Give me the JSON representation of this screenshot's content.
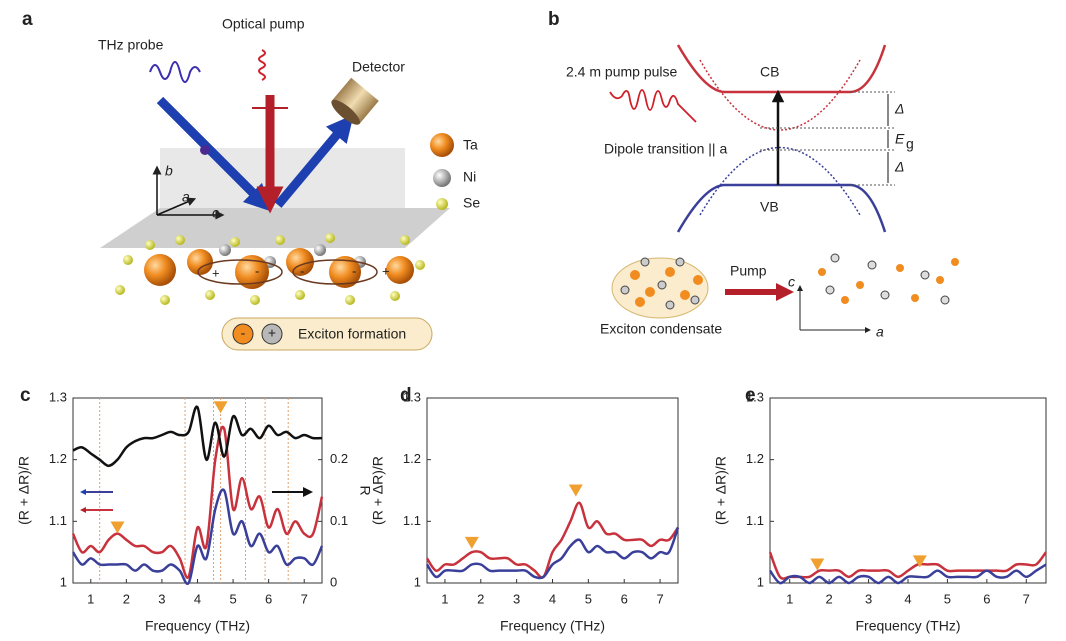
{
  "panel_a": {
    "label": "a",
    "thz_probe": "THz probe",
    "optical_pump": "Optical pump",
    "detector": "Detector",
    "legend": [
      "Ta",
      "Ni",
      "Se"
    ],
    "axes": [
      "b",
      "a",
      "c"
    ],
    "charges": [
      "-",
      "+"
    ],
    "exciton_formation": "Exciton formation"
  },
  "panel_b": {
    "label": "b",
    "pump_pulse": "2.4  m pump pulse",
    "cb": "CB",
    "vb": "VB",
    "delta": "Δ",
    "eg": "E",
    "eg_sub": "g",
    "dipole": "Dipole transition || a",
    "pump": "Pump",
    "condensate": "Exciton condensate",
    "axes": [
      "c",
      "a"
    ]
  },
  "chart_data": [
    {
      "type": "line",
      "label": "c",
      "x": [
        0.5,
        0.75,
        1,
        1.25,
        1.5,
        1.75,
        2,
        2.25,
        2.5,
        2.75,
        3,
        3.25,
        3.5,
        3.75,
        4,
        4.25,
        4.5,
        4.75,
        5,
        5.25,
        5.5,
        5.75,
        6,
        6.25,
        6.5,
        6.75,
        7,
        7.25,
        7.5
      ],
      "xlim": [
        0.5,
        7.5
      ],
      "xticks": [
        1,
        2,
        3,
        4,
        5,
        6,
        7
      ],
      "ylim": [
        1,
        1.3
      ],
      "yticks": [
        1,
        1.1,
        1.2,
        1.3
      ],
      "y2lim": [
        0,
        0.3
      ],
      "y2ticks": [
        0,
        0.1,
        0.2
      ],
      "xlabel": "Frequency (THz)",
      "ylabel": "(R + ΔR)/R",
      "y2label": "R",
      "series": [
        {
          "color": "#c8323c",
          "values": [
            1.08,
            1.05,
            1.06,
            1.05,
            1.07,
            1.08,
            1.07,
            1.06,
            1.06,
            1.05,
            1.05,
            1.06,
            1.04,
            1.01,
            1.09,
            1.06,
            1.2,
            1.25,
            1.12,
            1.17,
            1.12,
            1.14,
            1.09,
            1.12,
            1.08,
            1.1,
            1.08,
            1.08,
            1.14
          ]
        },
        {
          "color": "#3a3f9a",
          "values": [
            1.05,
            1.03,
            1.04,
            1.03,
            1.03,
            1.03,
            1.03,
            1.02,
            1.03,
            1.02,
            1.02,
            1.03,
            1.02,
            1.0,
            1.06,
            1.04,
            1.12,
            1.15,
            1.08,
            1.1,
            1.06,
            1.08,
            1.05,
            1.06,
            1.03,
            1.04,
            1.04,
            1.03,
            1.06
          ]
        },
        {
          "color": "#111111",
          "axis": "y2",
          "values": [
            0.215,
            0.22,
            0.21,
            0.2,
            0.19,
            0.2,
            0.22,
            0.23,
            0.235,
            0.235,
            0.24,
            0.245,
            0.24,
            0.245,
            0.285,
            0.2,
            0.26,
            0.205,
            0.27,
            0.24,
            0.25,
            0.235,
            0.255,
            0.24,
            0.245,
            0.235,
            0.24,
            0.235,
            0.235
          ]
        }
      ],
      "vlines": [
        1.25,
        3.65,
        4.45,
        4.65,
        5.35,
        5.9,
        6.55
      ],
      "vline_color": "#e0a070",
      "markers": [
        {
          "x": 1.75,
          "y": 1.09
        },
        {
          "x": 4.65,
          "y": 1.285
        }
      ],
      "marker_color": "#f0a030"
    },
    {
      "type": "line",
      "label": "d",
      "x": [
        0.5,
        0.75,
        1,
        1.25,
        1.5,
        1.75,
        2,
        2.25,
        2.5,
        2.75,
        3,
        3.25,
        3.5,
        3.75,
        4,
        4.25,
        4.5,
        4.75,
        5,
        5.25,
        5.5,
        5.75,
        6,
        6.25,
        6.5,
        6.75,
        7,
        7.25,
        7.5
      ],
      "xlim": [
        0.5,
        7.5
      ],
      "xticks": [
        1,
        2,
        3,
        4,
        5,
        6,
        7
      ],
      "ylim": [
        1,
        1.3
      ],
      "yticks": [
        1,
        1.1,
        1.2,
        1.3
      ],
      "xlabel": "Frequency (THz)",
      "ylabel": "(R + ΔR)/R",
      "series": [
        {
          "color": "#c8323c",
          "values": [
            1.04,
            1.02,
            1.03,
            1.03,
            1.04,
            1.05,
            1.05,
            1.04,
            1.04,
            1.04,
            1.03,
            1.03,
            1.02,
            1.01,
            1.05,
            1.07,
            1.1,
            1.13,
            1.09,
            1.1,
            1.08,
            1.08,
            1.07,
            1.07,
            1.07,
            1.06,
            1.07,
            1.07,
            1.09
          ]
        },
        {
          "color": "#3a3f9a",
          "values": [
            1.03,
            1.01,
            1.02,
            1.02,
            1.02,
            1.03,
            1.03,
            1.02,
            1.02,
            1.02,
            1.02,
            1.02,
            1.01,
            1.01,
            1.03,
            1.04,
            1.06,
            1.07,
            1.05,
            1.06,
            1.05,
            1.05,
            1.04,
            1.05,
            1.05,
            1.04,
            1.05,
            1.05,
            1.09
          ]
        }
      ],
      "markers": [
        {
          "x": 1.75,
          "y": 1.065
        },
        {
          "x": 4.65,
          "y": 1.15
        }
      ],
      "marker_color": "#f0a030"
    },
    {
      "type": "line",
      "label": "e",
      "x": [
        0.5,
        0.75,
        1,
        1.25,
        1.5,
        1.75,
        2,
        2.25,
        2.5,
        2.75,
        3,
        3.25,
        3.5,
        3.75,
        4,
        4.25,
        4.5,
        4.75,
        5,
        5.25,
        5.5,
        5.75,
        6,
        6.25,
        6.5,
        6.75,
        7,
        7.25,
        7.5
      ],
      "xlim": [
        0.5,
        7.5
      ],
      "xticks": [
        1,
        2,
        3,
        4,
        5,
        6,
        7
      ],
      "ylim": [
        1,
        1.3
      ],
      "yticks": [
        1,
        1.1,
        1.2,
        1.3
      ],
      "xlabel": "Frequency (THz)",
      "ylabel": "(R + ΔR)/R",
      "series": [
        {
          "color": "#c8323c",
          "values": [
            1.05,
            1.01,
            1.01,
            1.01,
            1.01,
            1.02,
            1.02,
            1.02,
            1.01,
            1.02,
            1.02,
            1.02,
            1.02,
            1.01,
            1.02,
            1.03,
            1.03,
            1.03,
            1.02,
            1.02,
            1.02,
            1.02,
            1.02,
            1.02,
            1.02,
            1.03,
            1.03,
            1.03,
            1.05
          ]
        },
        {
          "color": "#3a3f9a",
          "values": [
            1.02,
            1.0,
            1.01,
            1.01,
            1.0,
            1.01,
            1.0,
            1.01,
            1.0,
            1.01,
            1.01,
            1.0,
            1.01,
            1.0,
            1.01,
            1.01,
            1.01,
            1.02,
            1.01,
            1.01,
            1.01,
            1.01,
            1.02,
            1.01,
            1.01,
            1.02,
            1.01,
            1.02,
            1.03
          ]
        }
      ],
      "markers": [
        {
          "x": 1.7,
          "y": 1.03
        },
        {
          "x": 4.3,
          "y": 1.035
        }
      ],
      "marker_color": "#f0a030"
    }
  ]
}
